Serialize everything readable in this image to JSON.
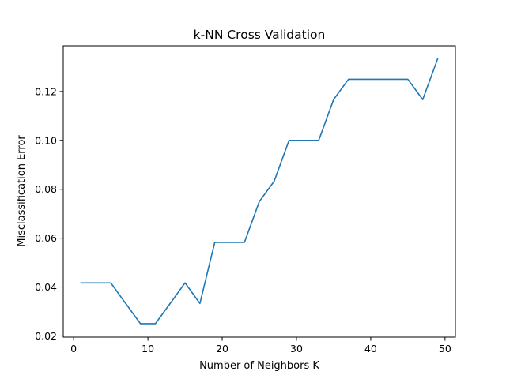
{
  "chart_data": {
    "type": "line",
    "title": "k-NN Cross Validation",
    "xlabel": "Number of Neighbors K",
    "ylabel": "Misclassification Error",
    "xlim": [
      -1.4,
      51.4
    ],
    "ylim": [
      0.0195,
      0.1387
    ],
    "xticks": [
      0,
      10,
      20,
      30,
      40,
      50
    ],
    "yticks": [
      0.02,
      0.04,
      0.06,
      0.08,
      0.1,
      0.12
    ],
    "ytick_labels": [
      "0.02",
      "0.04",
      "0.06",
      "0.08",
      "0.10",
      "0.12"
    ],
    "grid": false,
    "series": [
      {
        "color": "#1f77b4",
        "x": [
          1,
          3,
          5,
          7,
          9,
          11,
          13,
          15,
          17,
          19,
          21,
          23,
          25,
          27,
          29,
          31,
          33,
          35,
          37,
          39,
          41,
          43,
          45,
          47,
          49
        ],
        "y": [
          0.0417,
          0.0417,
          0.0417,
          0.0333,
          0.025,
          0.025,
          0.0333,
          0.0417,
          0.0333,
          0.0583,
          0.0583,
          0.0583,
          0.075,
          0.0833,
          0.1,
          0.1,
          0.1,
          0.1167,
          0.125,
          0.125,
          0.125,
          0.125,
          0.125,
          0.1167,
          0.1333
        ]
      }
    ]
  }
}
